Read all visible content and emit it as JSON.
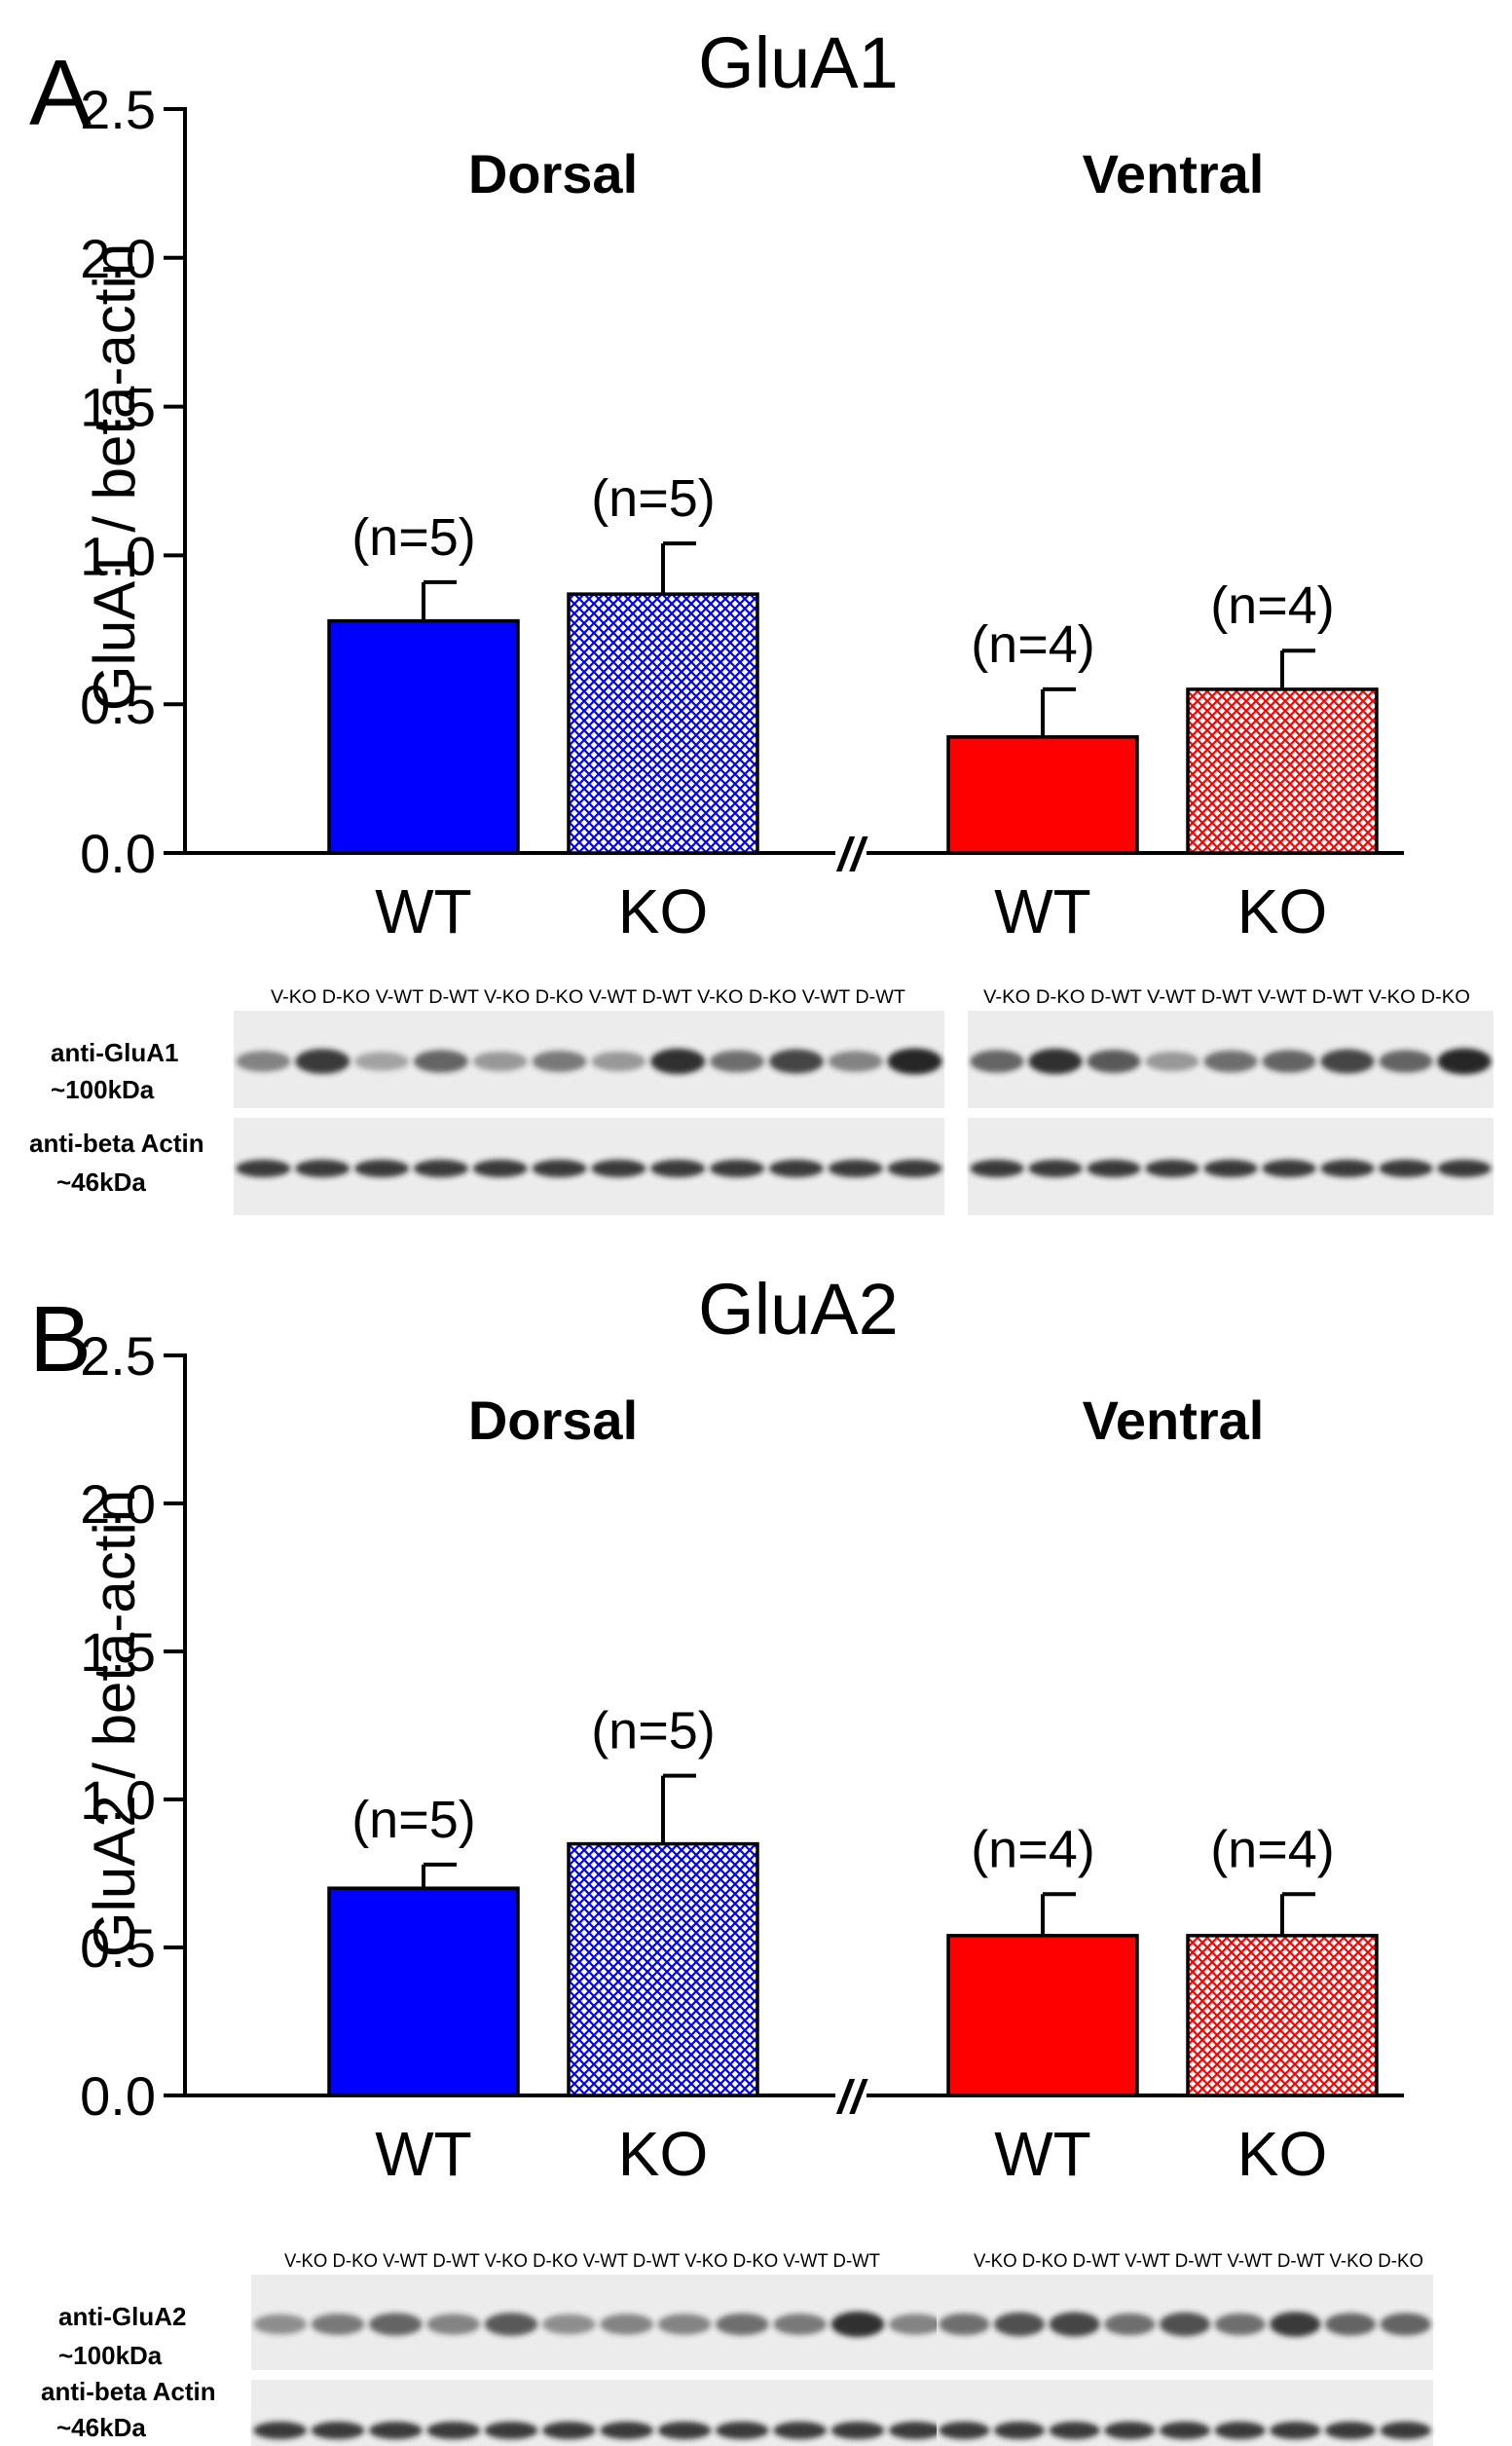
{
  "panels": [
    {
      "letter": "A",
      "title": "GluA1",
      "ylabel": "GluA1 / beta-actin",
      "group_labels": [
        "Dorsal",
        "Ventral"
      ],
      "blot": {
        "left_lanes": "V-KO D-KO V-WT D-WT V-KO D-KO V-WT D-WT V-KO D-KO V-WT D-WT",
        "right_lanes": "V-KO D-KO D-WT V-WT D-WT V-WT D-WT V-KO D-KO",
        "row1_label": [
          "anti-GluA1",
          "~100kDa"
        ],
        "row2_label": [
          "anti-beta Actin",
          "~46kDa"
        ]
      }
    },
    {
      "letter": "B",
      "title": "GluA2",
      "ylabel": "GluA2 / beta-actin",
      "group_labels": [
        "Dorsal",
        "Ventral"
      ],
      "blot": {
        "left_lanes": "V-KO D-KO V-WT D-WT V-KO D-KO V-WT D-WT V-KO D-KO V-WT D-WT",
        "right_lanes": "V-KO D-KO D-WT V-WT D-WT V-WT D-WT V-KO D-KO",
        "row1_label": [
          "anti-GluA2",
          "~100kDa"
        ],
        "row2_label": [
          "anti-beta Actin",
          "~46kDa"
        ]
      }
    }
  ],
  "chart_data": [
    {
      "type": "bar",
      "title": "GluA1",
      "ylabel": "GluA1 / beta-actin",
      "xlabel": "",
      "ylim": [
        0,
        2.5
      ],
      "yticks": [
        "0.0",
        "0.5",
        "1.0",
        "1.5",
        "2.0",
        "2.5"
      ],
      "categories": [
        "WT",
        "KO",
        "WT",
        "KO"
      ],
      "groups": [
        "Dorsal",
        "Dorsal",
        "Ventral",
        "Ventral"
      ],
      "values": [
        0.78,
        0.87,
        0.39,
        0.55
      ],
      "errors": [
        0.13,
        0.17,
        0.16,
        0.13
      ],
      "n_labels": [
        "(n=5)",
        "(n=5)",
        "(n=4)",
        "(n=4)"
      ],
      "colors": [
        "#0000ff",
        "#0000ff",
        "#ff0000",
        "#ff0000"
      ],
      "patterns": [
        "solid",
        "crosshatch",
        "solid",
        "crosshatch"
      ],
      "axis_break": "//"
    },
    {
      "type": "bar",
      "title": "GluA2",
      "ylabel": "GluA2 / beta-actin",
      "xlabel": "",
      "ylim": [
        0,
        2.5
      ],
      "yticks": [
        "0.0",
        "0.5",
        "1.0",
        "1.5",
        "2.0",
        "2.5"
      ],
      "categories": [
        "WT",
        "KO",
        "WT",
        "KO"
      ],
      "groups": [
        "Dorsal",
        "Dorsal",
        "Ventral",
        "Ventral"
      ],
      "values": [
        0.7,
        0.85,
        0.54,
        0.54
      ],
      "errors": [
        0.08,
        0.23,
        0.14,
        0.14
      ],
      "n_labels": [
        "(n=5)",
        "(n=5)",
        "(n=4)",
        "(n=4)"
      ],
      "colors": [
        "#0000ff",
        "#0000ff",
        "#ff0000",
        "#ff0000"
      ],
      "patterns": [
        "solid",
        "crosshatch",
        "solid",
        "crosshatch"
      ],
      "axis_break": "//"
    }
  ]
}
